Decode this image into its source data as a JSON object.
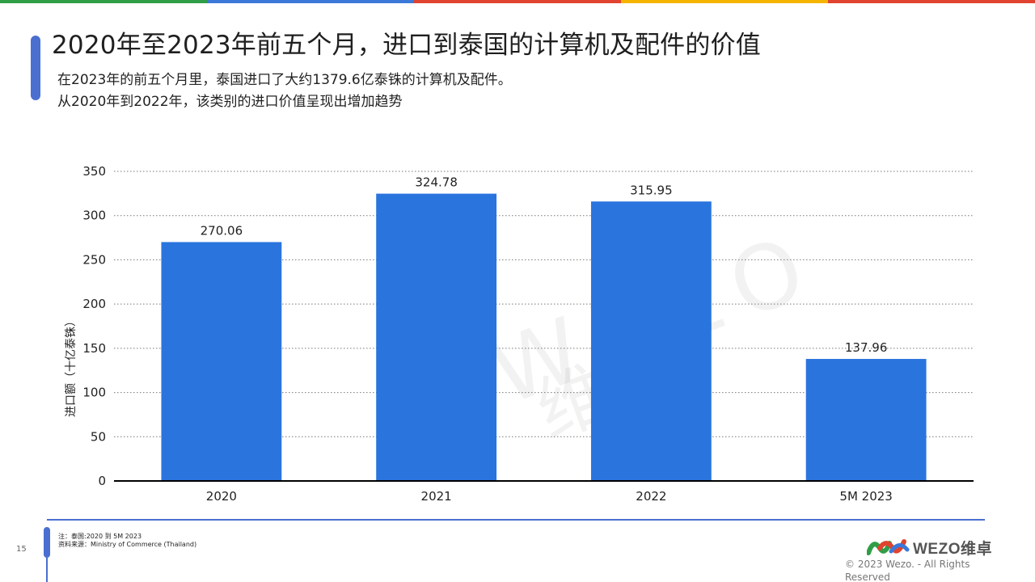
{
  "header": {
    "title": "2020年至2023年前五个月，进口到泰国的计算机及配件的价值",
    "subtitle_line1": "在2023年的前五个月里，泰国进口了大约1379.6亿泰铢的计算机及配件。",
    "subtitle_line2": "从2020年到2022年，该类别的进口价值呈现出增加趋势"
  },
  "colors": {
    "bar": "#2a74de",
    "accent": "#4a6fd0",
    "stripe": [
      "#2f9e46",
      "#3b78d8",
      "#e0432f",
      "#f4b400",
      "#e0432f"
    ]
  },
  "chart_data": {
    "type": "bar",
    "categories": [
      "2020",
      "2021",
      "2022",
      "5M 2023"
    ],
    "values": [
      270.06,
      324.78,
      315.95,
      137.96
    ],
    "value_labels": [
      "270.06",
      "324.78",
      "315.95",
      "137.96"
    ],
    "ylabel": "进口额（十亿泰铢）",
    "ylim": [
      0,
      350
    ],
    "yticks": [
      0,
      50,
      100,
      150,
      200,
      250,
      300,
      350
    ],
    "grid": true,
    "grid_style": "dotted"
  },
  "watermark": {
    "text": "WEZO",
    "text2": "维卓"
  },
  "footer": {
    "page_number": "15",
    "note": "注：泰国:2020 到 5M 2023",
    "source": "资料来源：Ministry of Commerce (Thailand)",
    "logo_text": "WEZO维卓",
    "copyright": "© 2023 Wezo. - All Rights Reserved"
  }
}
